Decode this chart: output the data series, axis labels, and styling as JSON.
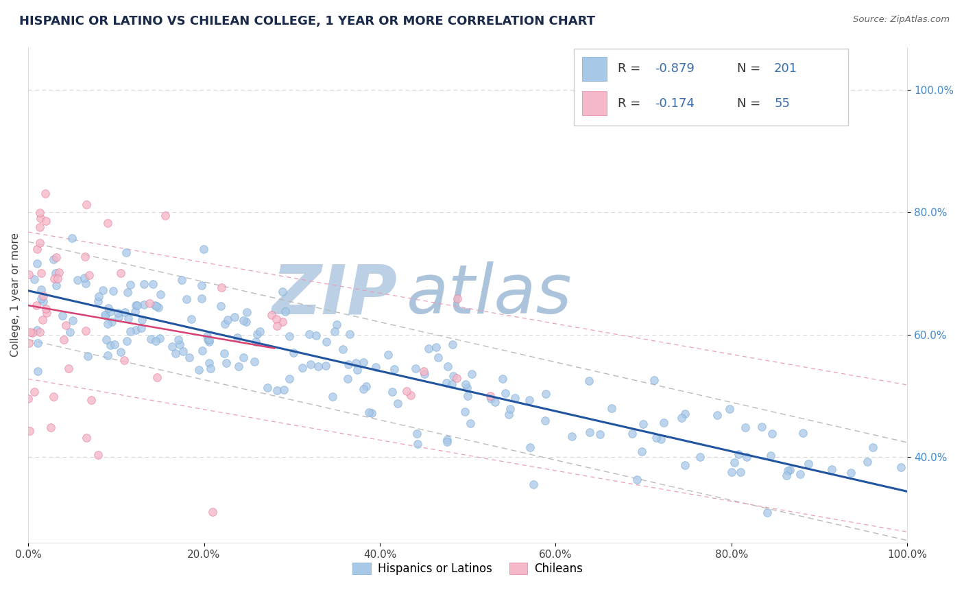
{
  "title": "HISPANIC OR LATINO VS CHILEAN COLLEGE, 1 YEAR OR MORE CORRELATION CHART",
  "source_text": "Source: ZipAtlas.com",
  "ylabel": "College, 1 year or more",
  "xlim": [
    0.0,
    1.0
  ],
  "ylim": [
    0.26,
    1.07
  ],
  "xticks": [
    0.0,
    0.2,
    0.4,
    0.6,
    0.8,
    1.0
  ],
  "xticklabels": [
    "0.0%",
    "20.0%",
    "40.0%",
    "60.0%",
    "80.0%",
    "100.0%"
  ],
  "yticks": [
    0.4,
    0.6,
    0.8,
    1.0
  ],
  "yticklabels": [
    "40.0%",
    "60.0%",
    "80.0%",
    "100.0%"
  ],
  "blue_color": "#a8c8e8",
  "blue_edge_color": "#78aad4",
  "pink_color": "#f4b8c8",
  "pink_edge_color": "#e87fa0",
  "blue_line_color": "#2255a0",
  "pink_line_color": "#d84070",
  "pink_dash_color": "#e8a0b8",
  "gray_dash_color": "#bbbbbb",
  "grid_color": "#cccccc",
  "watermark_zip": "ZIP",
  "watermark_atlas": "atlas",
  "watermark_color": "#ccd8e8",
  "tick_label_color": "#4488cc",
  "r1": -0.879,
  "n1": 201,
  "r2": -0.174,
  "n2": 55,
  "blue_intercept": 0.672,
  "blue_slope": -0.328,
  "pink_intercept": 0.648,
  "pink_slope": -0.25,
  "figsize": [
    14.06,
    8.92
  ],
  "dpi": 100
}
